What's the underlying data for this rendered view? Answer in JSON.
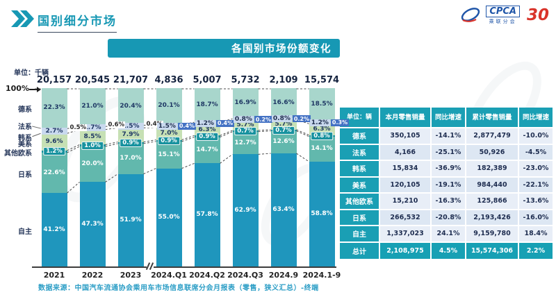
{
  "header": {
    "title": "国别细分市场",
    "logo": {
      "cpca": "CPCA",
      "sub": "乘联分会",
      "anniversary": "30"
    }
  },
  "banner": {
    "title": "各国别市场份额变化"
  },
  "chart_data": {
    "type": "bar",
    "stacked": true,
    "unit_label": "单位：千辆",
    "axis_top_label": "100%",
    "grid": false,
    "legend_position": "left-category-labels",
    "ylim": [
      0,
      100
    ],
    "categories": [
      "2021",
      "2022",
      "2023",
      "2024.Q1",
      "2024.Q2",
      "2024.Q3",
      "2024.9",
      "2024.1-9"
    ],
    "totals": [
      "20,157",
      "20,545",
      "21,707",
      "4,836",
      "5,007",
      "5,732",
      "2,109",
      "15,574"
    ],
    "axis_break_after_index": 2,
    "series": [
      {
        "name": "自主",
        "color": "#1f96bd",
        "text": "#ffffff",
        "values": [
          41.2,
          47.3,
          51.9,
          55.0,
          57.8,
          62.9,
          63.4,
          58.8
        ]
      },
      {
        "name": "日系",
        "color": "#62b8ad",
        "text": "#ffffff",
        "values": [
          22.6,
          20.0,
          17.0,
          15.1,
          14.7,
          12.7,
          12.6,
          14.1
        ]
      },
      {
        "name": "其他欧系",
        "color": "#17929f",
        "text": "#ffffff",
        "values": [
          1.2,
          1.0,
          0.9,
          0.9,
          0.9,
          0.7,
          0.7,
          0.8
        ]
      },
      {
        "name": "美系",
        "color": "#c6e0b4",
        "text": "#1f3864",
        "values": [
          9.6,
          8.5,
          7.9,
          7.0,
          6.3,
          5.7,
          5.7,
          6.3
        ]
      },
      {
        "name": "韩系",
        "color": "#c9d9ee",
        "text": "#1f3864",
        "values": [
          2.7,
          1.7,
          1.5,
          1.5,
          1.2,
          0.8,
          0.8,
          1.2
        ]
      },
      {
        "name": "法系",
        "color": "#dde7f4",
        "text": "#1f3864",
        "values": [
          0.5,
          0.6,
          0.4,
          0.4,
          0.4,
          0.2,
          0.2,
          0.3
        ]
      },
      {
        "name": "德系",
        "color": "#a8d6cc",
        "text": "#1f3864",
        "values": [
          22.3,
          21.0,
          20.4,
          20.1,
          18.7,
          16.9,
          16.6,
          18.5
        ]
      }
    ],
    "french_callout_box_from_index": 3
  },
  "table": {
    "unit_header": "单位：辆",
    "columns": [
      "本月零售销量",
      "同比增速",
      "累计零售销量",
      "同比增速"
    ],
    "rows": [
      {
        "label": "德系",
        "cells": [
          "350,105",
          "-14.1%",
          "2,877,479",
          "-10.0%"
        ]
      },
      {
        "label": "法系",
        "cells": [
          "4,166",
          "-25.1%",
          "50,926",
          "-4.5%"
        ]
      },
      {
        "label": "韩系",
        "cells": [
          "15,834",
          "-36.9%",
          "182,389",
          "-23.0%"
        ]
      },
      {
        "label": "美系",
        "cells": [
          "120,105",
          "-19.1%",
          "984,440",
          "-22.1%"
        ]
      },
      {
        "label": "其他欧系",
        "cells": [
          "15,210",
          "-16.3%",
          "125,866",
          "-13.6%"
        ]
      },
      {
        "label": "日系",
        "cells": [
          "266,532",
          "-20.8%",
          "2,193,426",
          "-16.0%"
        ]
      },
      {
        "label": "自主",
        "cells": [
          "1,337,023",
          "24.1%",
          "9,159,780",
          "18.4%"
        ]
      },
      {
        "label": "总计",
        "cells": [
          "2,108,975",
          "4.5%",
          "15,574,306",
          "2.2%"
        ],
        "is_total": true
      }
    ]
  },
  "footer": {
    "source": "数据来源：中国汽车流通协会乘用车市场信息联席分会月报表（零售，狭义汇总）-终端"
  }
}
